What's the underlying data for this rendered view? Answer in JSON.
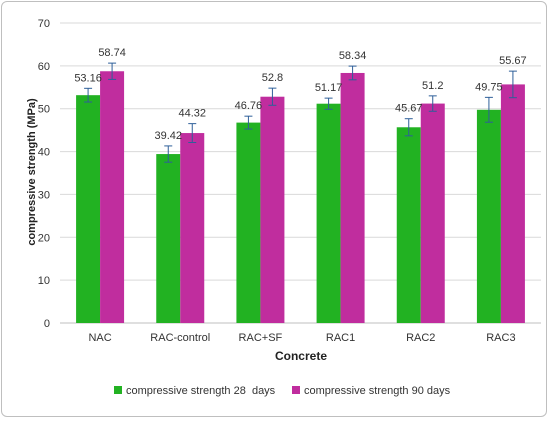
{
  "chart_data": {
    "type": "bar",
    "title": "",
    "xlabel": "Concrete",
    "ylabel": "compressive strength (MPa)",
    "ylim": [
      0,
      70
    ],
    "yticks": [
      0,
      10,
      20,
      30,
      40,
      50,
      60,
      70
    ],
    "grid": true,
    "legend_position": "bottom",
    "categories": [
      "NAC",
      "RAC-control",
      "RAC+SF",
      "RAC1",
      "RAC2",
      "RAC3"
    ],
    "series": [
      {
        "name": "compressive strength 28  days",
        "color": "#22b222",
        "values": [
          53.16,
          39.42,
          46.76,
          51.17,
          45.67,
          49.75
        ],
        "labels": [
          "53.16",
          "39.42",
          "46.76",
          "51.17",
          "45.67",
          "49.75"
        ],
        "error": [
          1.6,
          1.9,
          1.5,
          1.3,
          2.0,
          2.9
        ]
      },
      {
        "name": "compressive strength 90 days",
        "color": "#c02d9e",
        "values": [
          58.74,
          44.32,
          52.8,
          58.34,
          51.2,
          55.67
        ],
        "labels": [
          "58.74",
          "44.32",
          "52.8",
          "58.34",
          "51.2",
          "55.67"
        ],
        "error": [
          1.9,
          2.2,
          2.0,
          1.6,
          1.8,
          3.1
        ]
      }
    ]
  }
}
